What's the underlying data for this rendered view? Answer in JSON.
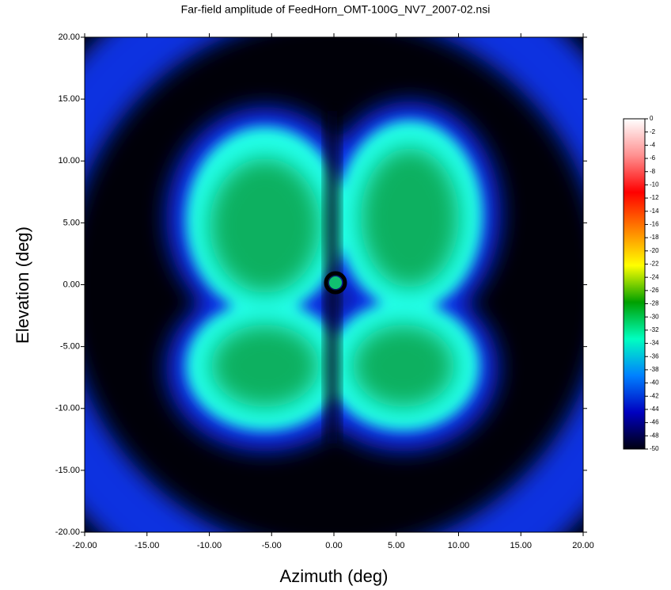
{
  "chart_data": {
    "type": "heatmap",
    "title": "Far-field amplitude of FeedHorn_OMT-100G_NV7_2007-02.nsi",
    "xlabel": "Azimuth (deg)",
    "ylabel": "Elevation (deg)",
    "xlim": [
      -20,
      20
    ],
    "ylim": [
      -20,
      20
    ],
    "xticks": [
      {
        "value": -20,
        "label": "-20.00"
      },
      {
        "value": -15,
        "label": "-15.00"
      },
      {
        "value": -10,
        "label": "-10.00"
      },
      {
        "value": -5,
        "label": "-5.00"
      },
      {
        "value": 0,
        "label": "0.00"
      },
      {
        "value": 5,
        "label": "5.00"
      },
      {
        "value": 10,
        "label": "10.00"
      },
      {
        "value": 15,
        "label": "15.00"
      },
      {
        "value": 20,
        "label": "20.00"
      }
    ],
    "yticks": [
      {
        "value": -20,
        "label": "-20.00"
      },
      {
        "value": -15,
        "label": "-15.00"
      },
      {
        "value": -10,
        "label": "-10.00"
      },
      {
        "value": -5,
        "label": "-5.00"
      },
      {
        "value": 0,
        "label": "0.00"
      },
      {
        "value": 5,
        "label": "5.00"
      },
      {
        "value": 10,
        "label": "10.00"
      },
      {
        "value": 15,
        "label": "15.00"
      },
      {
        "value": 20,
        "label": "20.00"
      }
    ],
    "colorbar_lim": [
      -50,
      0
    ],
    "colorbar_ticks": [
      0,
      -2,
      -4,
      -6,
      -8,
      -10,
      -12,
      -14,
      -16,
      -18,
      -20,
      -22,
      -24,
      -26,
      -28,
      -30,
      -32,
      -34,
      -36,
      -38,
      -40,
      -42,
      -44,
      -46,
      -48,
      -50
    ],
    "colorbar_colors": [
      "#ffffff",
      "#ff9090",
      "#ff0000",
      "#ff8000",
      "#ffff00",
      "#00a000",
      "#00ffc0",
      "#0080ff",
      "#0000c0",
      "#000010"
    ]
  }
}
